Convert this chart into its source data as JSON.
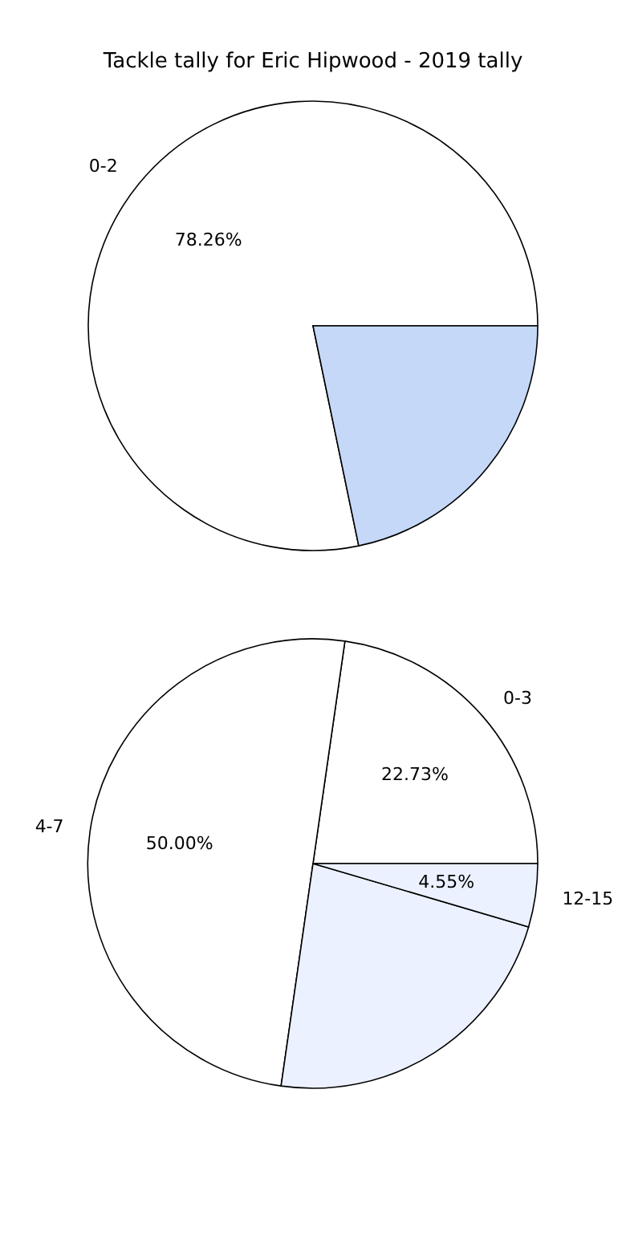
{
  "chart_data": [
    {
      "type": "pie",
      "title": "Tackle tally for Eric Hipwood - 2019 tally",
      "categories": [
        "0-2",
        null
      ],
      "values": [
        78.26,
        21.74
      ],
      "colors": [
        "#ffffff",
        "#c6d8f7"
      ],
      "data_labels": true,
      "value_labels": [
        "78.26%",
        null
      ]
    },
    {
      "type": "pie",
      "categories": [
        "0-3",
        "4-7",
        null,
        "12-15"
      ],
      "values": [
        22.73,
        50.0,
        22.72,
        4.55
      ],
      "colors": [
        "#ffffff",
        "#ffffff",
        "#ebf1fe",
        "#ebf1fe"
      ],
      "data_labels": true,
      "value_labels": [
        "22.73%",
        "50.00%",
        null,
        "4.55%"
      ]
    }
  ]
}
